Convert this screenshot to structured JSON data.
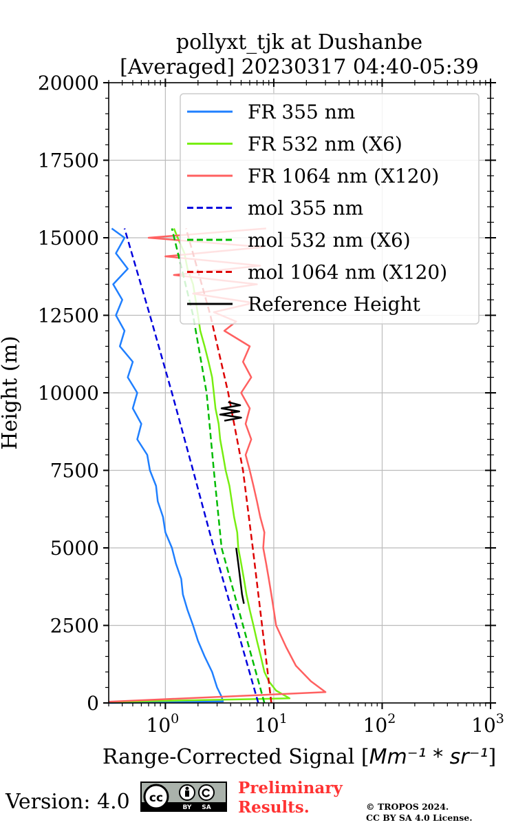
{
  "chart_data": {
    "type": "line",
    "title": "pollyxt_tjk at Dushanbe",
    "subtitle": "[Averaged] 20230317 04:40-05:39",
    "xlabel_text": "Range-Corrected Signal [",
    "xlabel_unit": "Mm⁻¹ * sr⁻¹",
    "xlabel_close": "]",
    "ylabel": "Height (m)",
    "x_scale": "log",
    "xlim": [
      0.3,
      1000
    ],
    "ylim": [
      0,
      20000
    ],
    "y_ticks": [
      "0",
      "2500",
      "5000",
      "7500",
      "10000",
      "12500",
      "15000",
      "17500",
      "20000"
    ],
    "x_ticks": [
      {
        "base": "10",
        "exp": "0"
      },
      {
        "base": "10",
        "exp": "1"
      },
      {
        "base": "10",
        "exp": "2"
      },
      {
        "base": "10",
        "exp": "3"
      }
    ],
    "grid": true,
    "legend_position": "top-right",
    "series": [
      {
        "name": "FR 355 nm",
        "color": "#1f7fff",
        "style": "solid",
        "points": [
          [
            0.3,
            0
          ],
          [
            3.4,
            50
          ],
          [
            3.3,
            200
          ],
          [
            3.0,
            500
          ],
          [
            2.7,
            1000
          ],
          [
            2.3,
            1500
          ],
          [
            2.0,
            2000
          ],
          [
            1.8,
            2500
          ],
          [
            1.6,
            3000
          ],
          [
            1.45,
            3500
          ],
          [
            1.4,
            4000
          ],
          [
            1.25,
            4500
          ],
          [
            1.15,
            5000
          ],
          [
            1.0,
            5500
          ],
          [
            0.95,
            6000
          ],
          [
            0.85,
            6500
          ],
          [
            0.82,
            7000
          ],
          [
            0.72,
            7500
          ],
          [
            0.68,
            8000
          ],
          [
            0.55,
            8500
          ],
          [
            0.6,
            9000
          ],
          [
            0.5,
            9500
          ],
          [
            0.55,
            10000
          ],
          [
            0.45,
            10500
          ],
          [
            0.5,
            11000
          ],
          [
            0.38,
            11500
          ],
          [
            0.42,
            12000
          ],
          [
            0.35,
            12500
          ],
          [
            0.4,
            13000
          ],
          [
            0.33,
            13500
          ],
          [
            0.45,
            14000
          ],
          [
            0.35,
            14500
          ],
          [
            0.42,
            15000
          ],
          [
            0.32,
            15300
          ]
        ]
      },
      {
        "name": "FR 532 nm (X6)",
        "color": "#77ee11",
        "style": "solid",
        "points": [
          [
            0.3,
            30
          ],
          [
            14,
            150
          ],
          [
            10.5,
            400
          ],
          [
            9.0,
            700
          ],
          [
            8.2,
            1000
          ],
          [
            7.6,
            1500
          ],
          [
            7.0,
            2000
          ],
          [
            6.5,
            2500
          ],
          [
            6.0,
            3000
          ],
          [
            5.6,
            3500
          ],
          [
            5.3,
            4000
          ],
          [
            5.0,
            4500
          ],
          [
            4.7,
            5000
          ],
          [
            4.6,
            5500
          ],
          [
            4.3,
            6000
          ],
          [
            4.1,
            6500
          ],
          [
            3.9,
            7000
          ],
          [
            3.6,
            7500
          ],
          [
            3.4,
            8000
          ],
          [
            3.2,
            8500
          ],
          [
            3.1,
            9000
          ],
          [
            2.9,
            9500
          ],
          [
            2.8,
            10000
          ],
          [
            2.7,
            10500
          ],
          [
            2.5,
            11000
          ],
          [
            2.3,
            11500
          ],
          [
            2.1,
            12000
          ],
          [
            2.0,
            12500
          ],
          [
            1.9,
            13000
          ],
          [
            1.8,
            13500
          ],
          [
            1.6,
            14000
          ],
          [
            1.5,
            14500
          ],
          [
            1.3,
            15000
          ],
          [
            1.2,
            15300
          ]
        ]
      },
      {
        "name": "FR 1064 nm (X120)",
        "color": "#ff6060",
        "style": "solid",
        "points": [
          [
            0.3,
            40
          ],
          [
            30,
            350
          ],
          [
            22,
            700
          ],
          [
            16,
            1200
          ],
          [
            13,
            1800
          ],
          [
            10.5,
            2500
          ],
          [
            10,
            3000
          ],
          [
            9.5,
            3500
          ],
          [
            9,
            4000
          ],
          [
            8.5,
            4500
          ],
          [
            8,
            5000
          ],
          [
            8.2,
            5500
          ],
          [
            7.5,
            6000
          ],
          [
            7,
            6500
          ],
          [
            6.5,
            7000
          ],
          [
            6,
            7500
          ],
          [
            5.5,
            8000
          ],
          [
            6.2,
            8500
          ],
          [
            5.5,
            9000
          ],
          [
            6,
            9500
          ],
          [
            5,
            10000
          ],
          [
            6.2,
            10500
          ],
          [
            5.2,
            11000
          ],
          [
            6,
            11500
          ],
          [
            3.5,
            12000
          ],
          [
            4.5,
            12300
          ],
          [
            2.8,
            12600
          ],
          [
            6.5,
            12900
          ],
          [
            1.8,
            13200
          ],
          [
            7,
            13500
          ],
          [
            1.2,
            13800
          ],
          [
            7.5,
            14100
          ],
          [
            1.0,
            14400
          ],
          [
            8,
            14700
          ],
          [
            0.7,
            15000
          ],
          [
            8.5,
            15300
          ]
        ]
      },
      {
        "name": "mol 355 nm",
        "color": "#0000dd",
        "style": "dashed",
        "points": [
          [
            7.2,
            0
          ],
          [
            4.5,
            2500
          ],
          [
            2.8,
            5000
          ],
          [
            1.8,
            7500
          ],
          [
            1.15,
            10000
          ],
          [
            0.72,
            12500
          ],
          [
            0.42,
            15300
          ]
        ]
      },
      {
        "name": "mol 532 nm (X6)",
        "color": "#00bb00",
        "style": "dashed",
        "points": [
          [
            8.2,
            0
          ],
          [
            5.2,
            2500
          ],
          [
            3.3,
            5000
          ],
          [
            2.8,
            7500
          ],
          [
            2.4,
            10000
          ],
          [
            1.8,
            12500
          ],
          [
            1.15,
            15300
          ]
        ]
      },
      {
        "name": "mol 1064 nm (X120)",
        "color": "#dd0000",
        "style": "dashed",
        "points": [
          [
            9.5,
            0
          ],
          [
            7.8,
            2500
          ],
          [
            6.4,
            5000
          ],
          [
            5.2,
            7500
          ],
          [
            3.8,
            10000
          ],
          [
            2.6,
            12500
          ],
          [
            1.55,
            15300
          ]
        ]
      },
      {
        "name": "Reference Height",
        "color": "#000000",
        "style": "solid",
        "points": [
          [
            4.5,
            5000
          ],
          [
            4.7,
            4500
          ],
          [
            4.9,
            4000
          ],
          [
            5.1,
            3500
          ],
          [
            5.3,
            3200
          ]
        ],
        "points2": [
          [
            3.5,
            9100
          ],
          [
            5.0,
            9200
          ],
          [
            3.2,
            9300
          ],
          [
            4.8,
            9400
          ],
          [
            3.3,
            9500
          ],
          [
            4.9,
            9600
          ],
          [
            3.8,
            9700
          ]
        ]
      }
    ]
  },
  "footer": {
    "version": "Version: 4.0",
    "badge_icon": "cc-by-sa-badge-icon",
    "badge_cc": "cc",
    "badge_by": "BY",
    "badge_sa": "SA",
    "preliminary_line1": "Preliminary",
    "preliminary_line2": "Results.",
    "copyright_line1": "© TROPOS 2024.",
    "copyright_line2": "CC BY SA 4.0 License."
  }
}
